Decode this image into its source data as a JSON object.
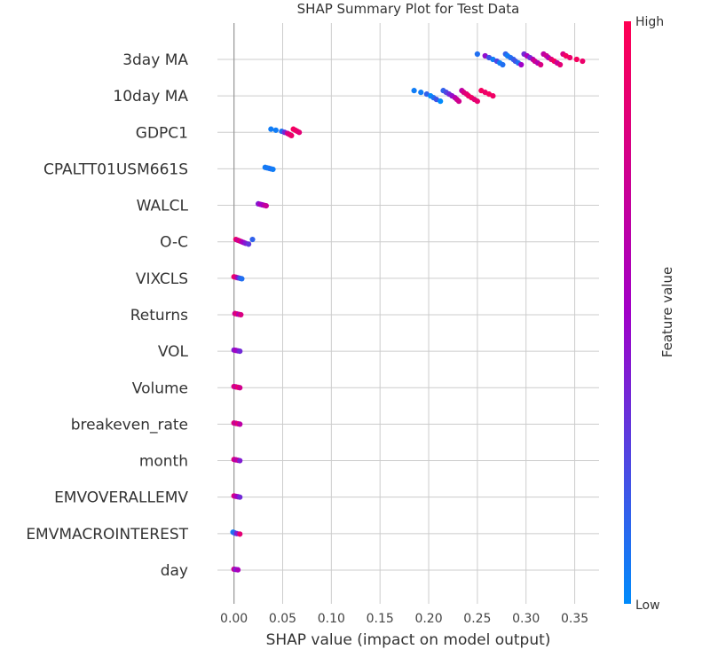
{
  "chart_data": {
    "type": "scatter",
    "title": "SHAP Summary Plot for Test Data",
    "xlabel": "SHAP value (impact on model output)",
    "xlim": [
      -0.017,
      0.375
    ],
    "xticks": [
      0.0,
      0.05,
      0.1,
      0.15,
      0.2,
      0.25,
      0.3,
      0.35
    ],
    "xtick_labels": [
      "0.00",
      "0.05",
      "0.10",
      "0.15",
      "0.20",
      "0.25",
      "0.30",
      "0.35"
    ],
    "grid": true,
    "colorbar": {
      "title": "Feature value",
      "high_label": "High",
      "low_label": "Low",
      "low_color": "#008bfb",
      "high_color": "#ff0052"
    },
    "features": [
      {
        "name": "3day MA",
        "points": [
          [
            0.25,
            0.1
          ],
          [
            0.258,
            0.45
          ],
          [
            0.262,
            0.2
          ],
          [
            0.266,
            0.05
          ],
          [
            0.27,
            0.25
          ],
          [
            0.273,
            0.05
          ],
          [
            0.276,
            0.1
          ],
          [
            0.279,
            0.15
          ],
          [
            0.281,
            0.05
          ],
          [
            0.284,
            0.1
          ],
          [
            0.287,
            0.15
          ],
          [
            0.289,
            0.2
          ],
          [
            0.292,
            0.1
          ],
          [
            0.295,
            0.5
          ],
          [
            0.298,
            0.35
          ],
          [
            0.301,
            0.55
          ],
          [
            0.304,
            0.35
          ],
          [
            0.307,
            0.6
          ],
          [
            0.309,
            0.75
          ],
          [
            0.312,
            0.6
          ],
          [
            0.315,
            0.8
          ],
          [
            0.318,
            0.65
          ],
          [
            0.321,
            0.75
          ],
          [
            0.323,
            0.6
          ],
          [
            0.326,
            0.85
          ],
          [
            0.329,
            0.95
          ],
          [
            0.332,
            0.7
          ],
          [
            0.335,
            0.85
          ],
          [
            0.338,
            0.8
          ],
          [
            0.341,
            0.95
          ],
          [
            0.345,
            0.9
          ],
          [
            0.352,
            0.95
          ],
          [
            0.358,
            0.9
          ]
        ]
      },
      {
        "name": "10day MA",
        "points": [
          [
            0.185,
            0.05
          ],
          [
            0.192,
            0.05
          ],
          [
            0.198,
            0.15
          ],
          [
            0.202,
            0.0
          ],
          [
            0.205,
            0.1
          ],
          [
            0.208,
            0.2
          ],
          [
            0.212,
            0.0
          ],
          [
            0.215,
            0.15
          ],
          [
            0.218,
            0.25
          ],
          [
            0.221,
            0.35
          ],
          [
            0.224,
            0.45
          ],
          [
            0.227,
            0.6
          ],
          [
            0.229,
            0.7
          ],
          [
            0.231,
            0.75
          ],
          [
            0.234,
            0.65
          ],
          [
            0.236,
            0.8
          ],
          [
            0.239,
            0.85
          ],
          [
            0.241,
            0.9
          ],
          [
            0.244,
            0.92
          ],
          [
            0.247,
            0.85
          ],
          [
            0.25,
            0.88
          ],
          [
            0.254,
            0.95
          ],
          [
            0.258,
            0.9
          ],
          [
            0.262,
            0.95
          ],
          [
            0.266,
            0.92
          ]
        ]
      },
      {
        "name": "GDPC1",
        "points": [
          [
            0.038,
            0.05
          ],
          [
            0.043,
            0.05
          ],
          [
            0.049,
            0.1
          ],
          [
            0.052,
            0.35
          ],
          [
            0.055,
            0.75
          ],
          [
            0.057,
            0.85
          ],
          [
            0.059,
            0.9
          ],
          [
            0.061,
            0.95
          ],
          [
            0.063,
            0.92
          ],
          [
            0.065,
            0.9
          ],
          [
            0.067,
            0.85
          ]
        ]
      },
      {
        "name": "CPALTT01USM661S",
        "points": [
          [
            0.032,
            0.05
          ],
          [
            0.034,
            0.08
          ],
          [
            0.036,
            0.05
          ],
          [
            0.038,
            0.1
          ],
          [
            0.04,
            0.05
          ]
        ]
      },
      {
        "name": "WALCL",
        "points": [
          [
            0.025,
            0.4
          ],
          [
            0.027,
            0.55
          ],
          [
            0.029,
            0.5
          ],
          [
            0.031,
            0.6
          ],
          [
            0.033,
            0.7
          ]
        ]
      },
      {
        "name": "O-C",
        "points": [
          [
            0.002,
            0.9
          ],
          [
            0.004,
            0.7
          ],
          [
            0.006,
            0.85
          ],
          [
            0.008,
            0.6
          ],
          [
            0.01,
            0.5
          ],
          [
            0.012,
            0.4
          ],
          [
            0.015,
            0.3
          ],
          [
            0.019,
            0.15
          ]
        ]
      },
      {
        "name": "VIXCLS",
        "points": [
          [
            0.0,
            0.9
          ],
          [
            0.002,
            0.8
          ],
          [
            0.004,
            0.45
          ],
          [
            0.006,
            0.2
          ],
          [
            0.008,
            0.1
          ]
        ]
      },
      {
        "name": "Returns",
        "points": [
          [
            0.001,
            0.75
          ],
          [
            0.003,
            0.85
          ],
          [
            0.005,
            0.6
          ],
          [
            0.007,
            0.8
          ]
        ]
      },
      {
        "name": "VOL",
        "points": [
          [
            0.0,
            0.4
          ],
          [
            0.002,
            0.55
          ],
          [
            0.004,
            0.45
          ],
          [
            0.006,
            0.35
          ]
        ]
      },
      {
        "name": "Volume",
        "points": [
          [
            0.0,
            0.8
          ],
          [
            0.002,
            0.7
          ],
          [
            0.004,
            0.9
          ],
          [
            0.006,
            0.75
          ]
        ]
      },
      {
        "name": "breakeven_rate",
        "points": [
          [
            0.0,
            0.8
          ],
          [
            0.002,
            0.7
          ],
          [
            0.004,
            0.85
          ],
          [
            0.006,
            0.65
          ]
        ]
      },
      {
        "name": "month",
        "points": [
          [
            0.0,
            0.8
          ],
          [
            0.002,
            0.6
          ],
          [
            0.004,
            0.7
          ],
          [
            0.006,
            0.4
          ]
        ]
      },
      {
        "name": "EMVOVERALLEMV",
        "points": [
          [
            0.0,
            0.8
          ],
          [
            0.002,
            0.6
          ],
          [
            0.004,
            0.5
          ],
          [
            0.006,
            0.35
          ]
        ]
      },
      {
        "name": "EMVMACROINTEREST",
        "points": [
          [
            -0.001,
            0.05
          ],
          [
            0.0,
            0.1
          ],
          [
            0.001,
            0.15
          ],
          [
            0.003,
            0.4
          ],
          [
            0.006,
            0.85
          ]
        ]
      },
      {
        "name": "day",
        "points": [
          [
            0.0,
            0.7
          ],
          [
            0.002,
            0.4
          ],
          [
            0.004,
            0.55
          ]
        ]
      }
    ]
  }
}
